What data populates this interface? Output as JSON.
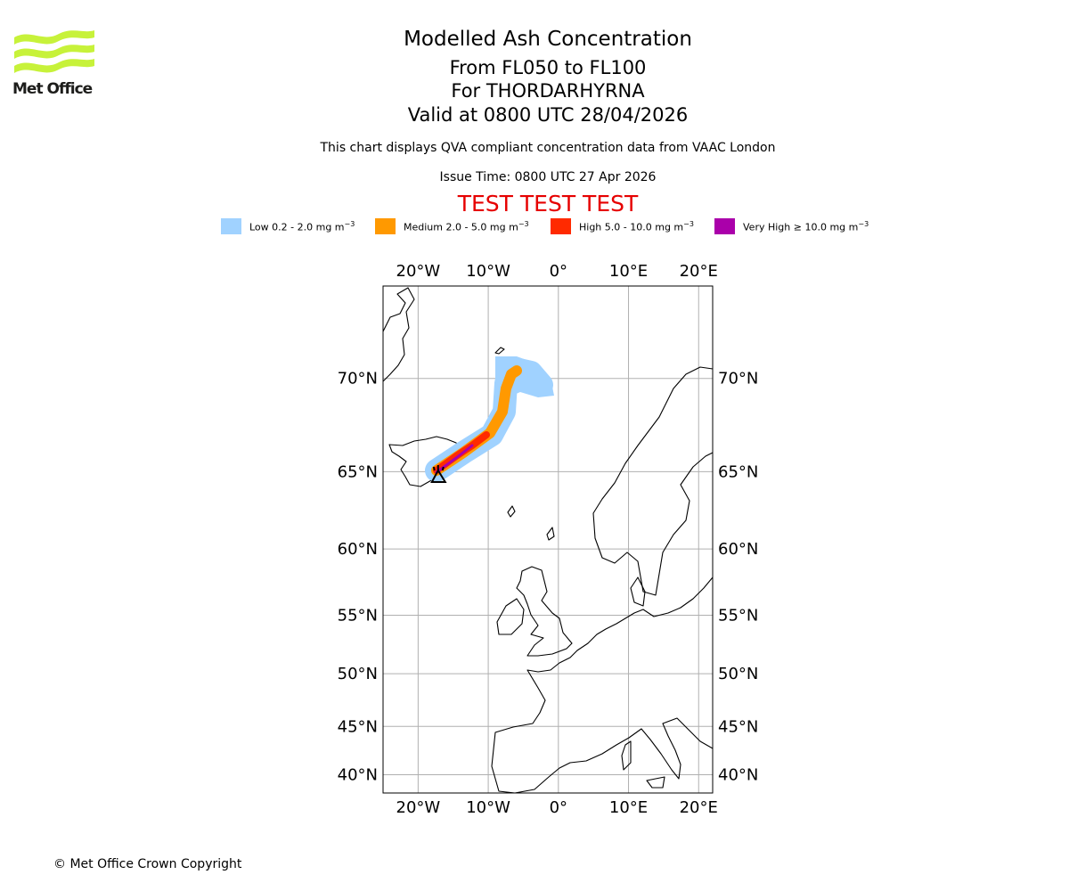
{
  "logo": {
    "text": "Met Office",
    "color": "#c7f23a"
  },
  "header": {
    "title": "Modelled Ash Concentration",
    "levels": "From FL050 to FL100",
    "volcano": "For THORDARHYRNA",
    "valid": "Valid at 0800 UTC 28/04/2026",
    "description": "This chart displays QVA compliant concentration data from VAAC London",
    "issue_time": "Issue Time: 0800 UTC 27 Apr 2026",
    "test_banner": "TEST TEST TEST",
    "test_banner_color": "#e60000"
  },
  "legend": [
    {
      "label": "Low 0.2 - 2.0 mg m",
      "unit_exp": "−3",
      "color": "#a0d2ff"
    },
    {
      "label": "Medium 2.0 - 5.0 mg m",
      "unit_exp": "−3",
      "color": "#ff9900"
    },
    {
      "label": "High 5.0 - 10.0 mg m",
      "unit_exp": "−3",
      "color": "#ff2a00"
    },
    {
      "label": "Very High ≥ 10.0 mg m",
      "unit_exp": "−3",
      "color": "#aa00aa"
    }
  ],
  "map": {
    "lon_ticks": [
      "20°W",
      "10°W",
      "0°",
      "10°E",
      "20°E"
    ],
    "lat_ticks": [
      "70°N",
      "65°N",
      "60°N",
      "55°N",
      "50°N",
      "45°N",
      "40°N"
    ],
    "lon_values": [
      -20,
      -10,
      0,
      10,
      20
    ],
    "lat_values": [
      70,
      65,
      60,
      55,
      50,
      45,
      40
    ],
    "lon_range": [
      -25,
      22
    ],
    "lat_range": [
      38,
      74
    ],
    "volcano_location": {
      "lat": 64.65,
      "lon": -17.15
    }
  },
  "footer": {
    "copyright": "© Met Office Crown Copyright"
  }
}
